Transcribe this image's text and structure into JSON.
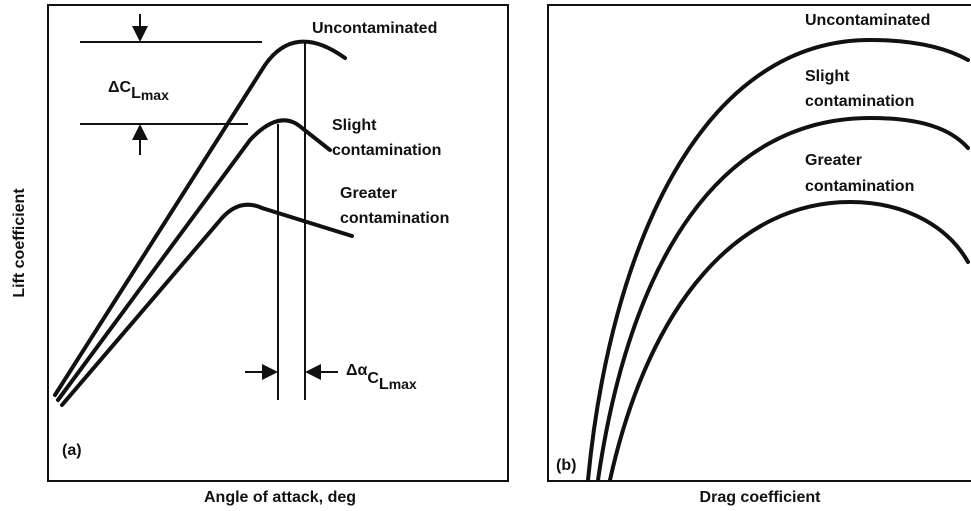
{
  "panel_a": {
    "tag": "(a)",
    "y_label": "Lift coefficient",
    "x_label": "Angle of attack, deg",
    "curves": [
      {
        "lines": [
          "Uncontaminated"
        ]
      },
      {
        "lines": [
          "Slight",
          "contamination"
        ]
      },
      {
        "lines": [
          "Greater",
          "contamination"
        ]
      }
    ],
    "delta_cl": {
      "symbol": "ΔC",
      "sub": "L",
      "subsub": "max"
    },
    "delta_alpha": {
      "symbol": "Δα",
      "sub": "C",
      "subsub": "L",
      "subsubsub": "max"
    }
  },
  "panel_b": {
    "tag": "(b)",
    "x_label": "Drag coefficient",
    "curves": [
      {
        "lines": [
          "Uncontaminated"
        ]
      },
      {
        "lines": [
          "Slight",
          "contamination"
        ]
      },
      {
        "lines": [
          "Greater",
          "contamination"
        ]
      }
    ]
  }
}
